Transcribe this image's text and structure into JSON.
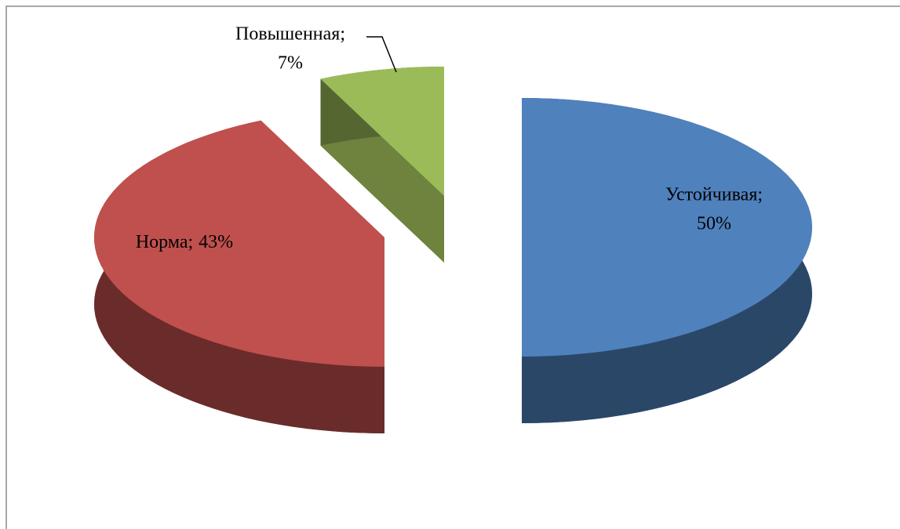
{
  "chart_data": {
    "type": "pie3d",
    "categories": [
      "Устойчивая;",
      "Норма;",
      "Повышенная;"
    ],
    "values": [
      50,
      43,
      7
    ],
    "value_labels": [
      "50%",
      "43%",
      "7%"
    ],
    "colors": [
      "#4f81bd",
      "#c0504d",
      "#9bbb59"
    ]
  }
}
